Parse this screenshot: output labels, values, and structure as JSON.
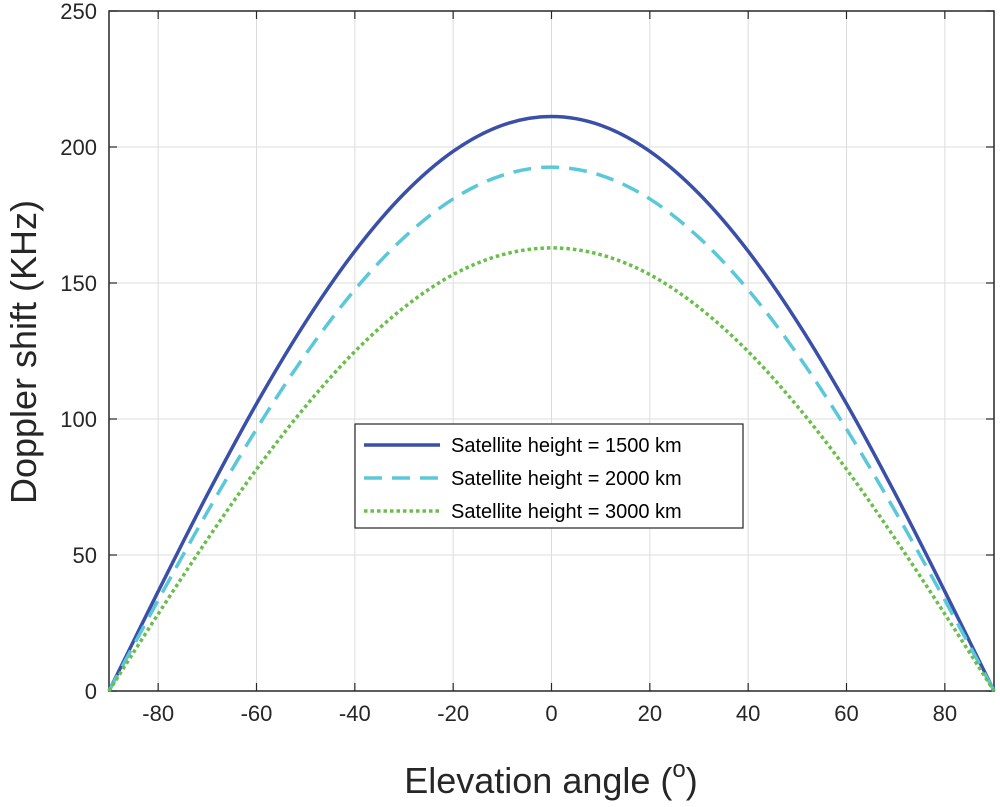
{
  "chart_data": {
    "type": "line",
    "xlabel": "Elevation angle (",
    "xlabel_superscript": "o",
    "xlabel_close": ")",
    "ylabel": "Doppler shift (KHz)",
    "xlim": [
      -90,
      90
    ],
    "ylim": [
      0,
      250
    ],
    "xticks": [
      -80,
      -60,
      -40,
      -20,
      0,
      20,
      40,
      60,
      80
    ],
    "yticks": [
      0,
      50,
      100,
      150,
      200,
      250
    ],
    "grid": true,
    "legend_position": "center",
    "x": [
      -90,
      -80,
      -70,
      -60,
      -50,
      -40,
      -30,
      -20,
      -10,
      0,
      10,
      20,
      30,
      40,
      50,
      60,
      70,
      80,
      90
    ],
    "series": [
      {
        "name": "Satellite height = 1500 km",
        "color": "#3a4fa8",
        "style": "solid",
        "values": [
          0,
          36.6,
          72.2,
          105.6,
          135.7,
          161.7,
          182.8,
          198.4,
          208.0,
          211.2,
          208.0,
          198.4,
          182.8,
          161.7,
          135.7,
          105.6,
          72.2,
          36.6,
          0
        ]
      },
      {
        "name": "Satellite height = 2000 km",
        "color": "#5ac8d8",
        "style": "dashed",
        "values": [
          0,
          33.4,
          65.8,
          96.3,
          123.8,
          147.5,
          166.7,
          180.9,
          189.6,
          192.6,
          189.6,
          180.9,
          166.7,
          147.5,
          123.8,
          96.3,
          65.8,
          33.4,
          0
        ]
      },
      {
        "name": "Satellite height = 3000 km",
        "color": "#6abf4b",
        "style": "dotted",
        "values": [
          0,
          28.3,
          55.7,
          81.5,
          104.7,
          124.8,
          141.0,
          153.1,
          160.4,
          162.9,
          160.4,
          153.1,
          141.0,
          124.8,
          104.7,
          81.5,
          55.7,
          28.3,
          0
        ]
      }
    ]
  }
}
